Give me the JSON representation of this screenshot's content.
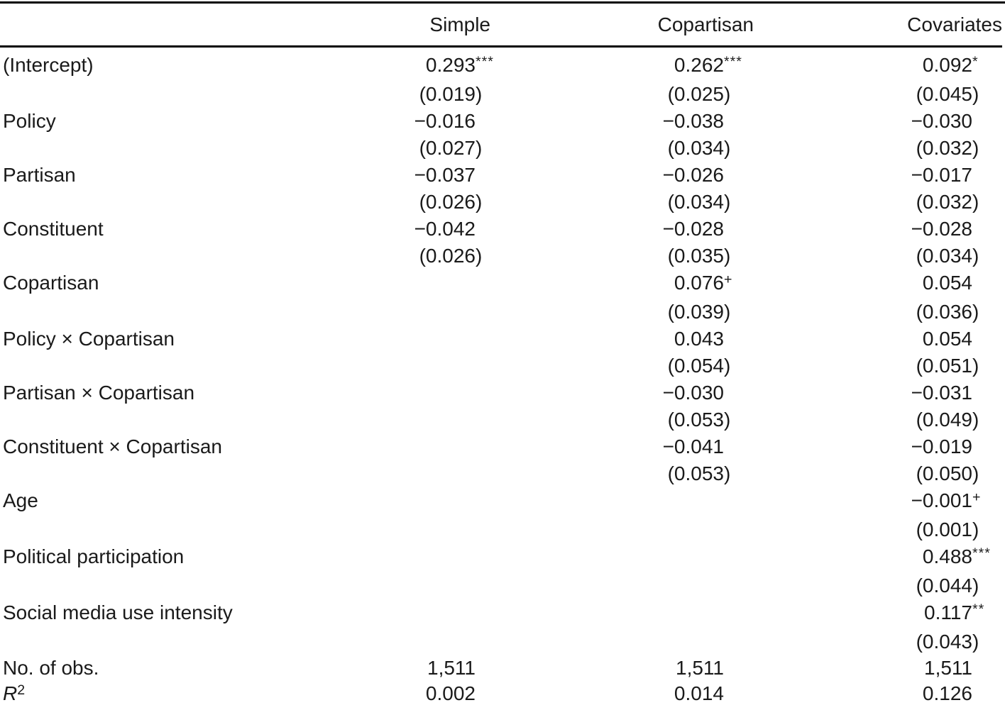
{
  "page": {
    "background": "#ffffff",
    "text_color": "#1a1a1a",
    "rule_color": "#000000"
  },
  "table": {
    "columns": [
      "Simple",
      "Copartisan",
      "Covariates"
    ],
    "rows": [
      {
        "label": "(Intercept)",
        "cells": [
          {
            "est": "0.293",
            "stars": "***",
            "se": "(0.019)"
          },
          {
            "est": "0.262",
            "stars": "***",
            "se": "(0.025)"
          },
          {
            "est": "0.092",
            "stars": "*",
            "se": "(0.045)"
          }
        ]
      },
      {
        "label": "Policy",
        "cells": [
          {
            "est": "−0.016",
            "se": "(0.027)"
          },
          {
            "est": "−0.038",
            "se": "(0.034)"
          },
          {
            "est": "−0.030",
            "se": "(0.032)"
          }
        ]
      },
      {
        "label": "Partisan",
        "cells": [
          {
            "est": "−0.037",
            "se": "(0.026)"
          },
          {
            "est": "−0.026",
            "se": "(0.034)"
          },
          {
            "est": "−0.017",
            "se": "(0.032)"
          }
        ]
      },
      {
        "label": "Constituent",
        "cells": [
          {
            "est": "−0.042",
            "se": "(0.026)"
          },
          {
            "est": "−0.028",
            "se": "(0.035)"
          },
          {
            "est": "−0.028",
            "se": "(0.034)"
          }
        ]
      },
      {
        "label": "Copartisan",
        "cells": [
          null,
          {
            "est": "0.076",
            "stars": "+",
            "se": "(0.039)"
          },
          {
            "est": "0.054",
            "se": "(0.036)"
          }
        ]
      },
      {
        "label": "Policy × Copartisan",
        "cells": [
          null,
          {
            "est": "0.043",
            "se": "(0.054)"
          },
          {
            "est": "0.054",
            "se": "(0.051)"
          }
        ]
      },
      {
        "label": "Partisan × Copartisan",
        "cells": [
          null,
          {
            "est": "−0.030",
            "se": "(0.053)"
          },
          {
            "est": "−0.031",
            "se": "(0.049)"
          }
        ]
      },
      {
        "label": "Constituent × Copartisan",
        "cells": [
          null,
          {
            "est": "−0.041",
            "se": "(0.053)"
          },
          {
            "est": "−0.019",
            "se": "(0.050)"
          }
        ]
      },
      {
        "label": "Age",
        "cells": [
          null,
          null,
          {
            "est": "−0.001",
            "stars": "+",
            "se": "(0.001)"
          }
        ]
      },
      {
        "label": "Political participation",
        "cells": [
          null,
          null,
          {
            "est": "0.488",
            "stars": "***",
            "se": "(0.044)"
          }
        ]
      },
      {
        "label": "Social media use intensity",
        "cells": [
          null,
          null,
          {
            "est": "0.117",
            "stars": "**",
            "se": "(0.043)"
          }
        ]
      }
    ],
    "stats": [
      {
        "label": "No. of obs.",
        "values": [
          "1,511",
          "1,511",
          "1,511"
        ]
      },
      {
        "label": "R",
        "label_sup": "2",
        "italic": true,
        "values": [
          "0.002",
          "0.014",
          "0.126"
        ]
      }
    ]
  }
}
